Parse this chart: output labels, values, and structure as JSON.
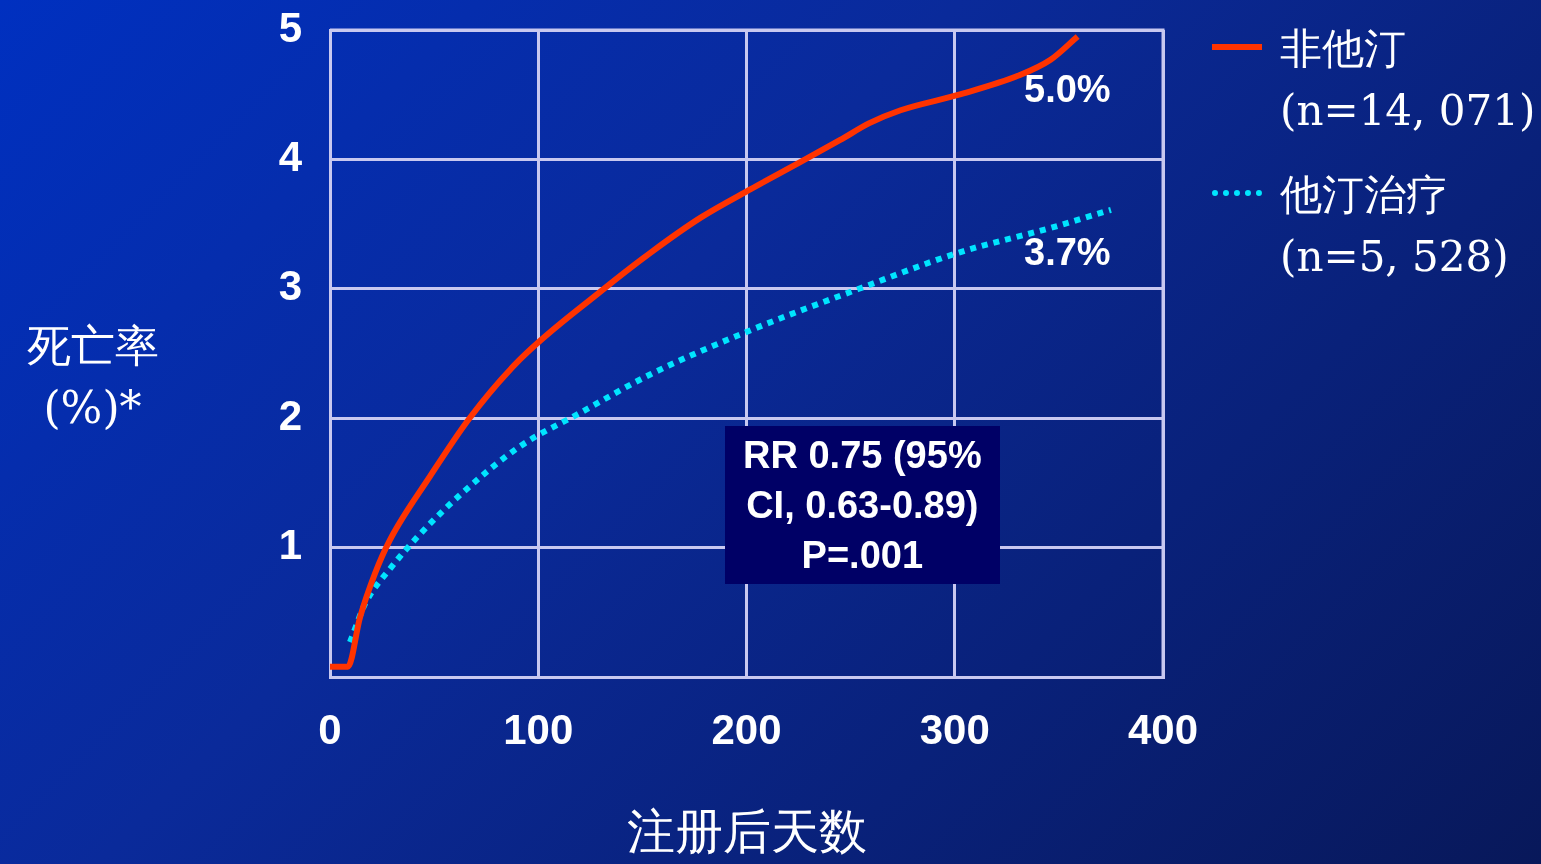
{
  "chart_data": {
    "type": "line",
    "xlabel": "注册后天数",
    "ylabel": "死亡率\n(%)*",
    "xlim": [
      0,
      400
    ],
    "xticks": [
      0,
      100,
      200,
      300,
      400
    ],
    "ylim": [
      0,
      5
    ],
    "yticks": [
      1,
      2,
      3,
      4,
      5
    ],
    "grid": true,
    "legend": "top right",
    "marker": "none",
    "series": [
      {
        "name": "非他汀\n(n=14, 071)",
        "color": "#ff3300",
        "line_style": "solid",
        "x": [
          0,
          8.6,
          14.4,
          21.6,
          28.8,
          48,
          67,
          91,
          130,
          154,
          178,
          202,
          226,
          245,
          259,
          274,
          302,
          331,
          346,
          359
        ],
        "values": [
          0.08,
          0.08,
          0.46,
          0.8,
          1.06,
          1.55,
          2.0,
          2.45,
          2.98,
          3.28,
          3.55,
          3.77,
          3.98,
          4.15,
          4.28,
          4.38,
          4.5,
          4.65,
          4.77,
          4.95
        ]
      },
      {
        "name": "他汀治疗\n(n=5, 528)",
        "color": "#00e5ff",
        "line_style": "dotted",
        "x": [
          9.6,
          17,
          29,
          43,
          62,
          91,
          120,
          154,
          202,
          254,
          302,
          346,
          375
        ],
        "values": [
          0.27,
          0.57,
          0.84,
          1.1,
          1.4,
          1.78,
          2.04,
          2.34,
          2.68,
          3.0,
          3.28,
          3.47,
          3.61
        ]
      }
    ],
    "annotations": [
      "5.0%",
      "3.7%",
      "RR 0.75 (95%\nCI, 0.63-0.89)\nP=.001"
    ]
  }
}
